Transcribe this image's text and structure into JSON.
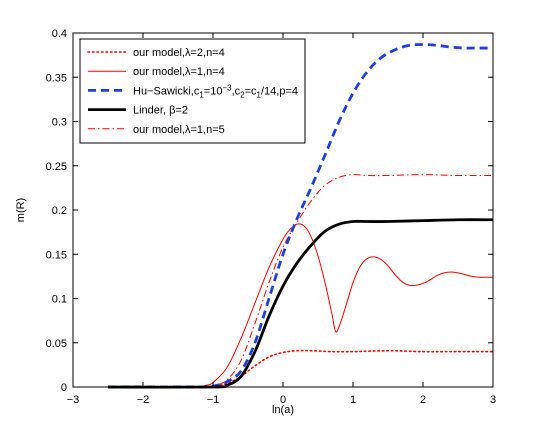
{
  "chart_data": {
    "type": "line",
    "xlabel": "ln(a)",
    "ylabel": "m(R)",
    "xlim": [
      -3,
      3
    ],
    "ylim": [
      0,
      0.4
    ],
    "xticks": [
      -3,
      -2,
      -1,
      0,
      1,
      2,
      3
    ],
    "yticks": [
      0,
      0.05,
      0.1,
      0.15,
      0.2,
      0.25,
      0.3,
      0.35,
      0.4
    ],
    "xtick_labels": [
      "−3",
      "−2",
      "−1",
      "0",
      "1",
      "2",
      "3"
    ],
    "ytick_labels": [
      "0",
      "0.05",
      "0.1",
      "0.15",
      "0.2",
      "0.25",
      "0.3",
      "0.35",
      "0.4"
    ],
    "grid": false,
    "legend_position": "top-left",
    "series": [
      {
        "key": "lambda2n4",
        "name": "our model,λ=2,n=4",
        "color": "#ff0000",
        "style": "dotted",
        "x": [
          -2.5,
          -1.2,
          -1.0,
          -0.8,
          -0.6,
          -0.4,
          -0.2,
          0.0,
          0.2,
          0.4,
          0.7,
          1.0,
          1.5,
          2.0,
          2.5,
          3.0
        ],
        "y": [
          0,
          0,
          0.001,
          0.004,
          0.012,
          0.024,
          0.034,
          0.039,
          0.041,
          0.041,
          0.04,
          0.04,
          0.041,
          0.04,
          0.04,
          0.04
        ]
      },
      {
        "key": "lambda1n4",
        "name": "our model,λ=1,n=4",
        "color": "#ff0000",
        "style": "solid",
        "x": [
          -2.5,
          -1.3,
          -1.1,
          -1.0,
          -0.8,
          -0.6,
          -0.4,
          -0.2,
          0.0,
          0.1,
          0.2,
          0.3,
          0.4,
          0.5,
          0.6,
          0.7,
          0.75,
          0.8,
          0.9,
          1.0,
          1.1,
          1.2,
          1.3,
          1.4,
          1.5,
          1.6,
          1.7,
          1.8,
          1.9,
          2.0,
          2.1,
          2.2,
          2.3,
          2.4,
          2.5,
          2.6,
          2.7,
          2.8,
          2.9,
          3.0
        ],
        "y": [
          0,
          0,
          0.002,
          0.005,
          0.022,
          0.055,
          0.095,
          0.135,
          0.167,
          0.178,
          0.184,
          0.182,
          0.17,
          0.148,
          0.118,
          0.082,
          0.063,
          0.068,
          0.092,
          0.118,
          0.136,
          0.145,
          0.147,
          0.144,
          0.137,
          0.127,
          0.119,
          0.115,
          0.115,
          0.117,
          0.121,
          0.126,
          0.129,
          0.13,
          0.129,
          0.127,
          0.125,
          0.124,
          0.124,
          0.124
        ]
      },
      {
        "key": "husawicki",
        "name": "Hu−Sawicki,c",
        "name_sub1": "1",
        "name_mid1": "=10",
        "name_sup": "−3",
        "name_mid2": ",c",
        "name_sub2": "2",
        "name_mid3": "=c",
        "name_sub3": "1",
        "name_end": "/14,p=4",
        "color": "#1f3de0",
        "style": "dashed",
        "x": [
          -2.5,
          -1.2,
          -1.0,
          -0.8,
          -0.6,
          -0.4,
          -0.2,
          0.0,
          0.2,
          0.4,
          0.6,
          0.8,
          1.0,
          1.2,
          1.4,
          1.6,
          1.8,
          2.0,
          2.2,
          2.4,
          2.6,
          2.8,
          3.0
        ],
        "y": [
          0,
          0,
          0.001,
          0.006,
          0.018,
          0.05,
          0.1,
          0.15,
          0.19,
          0.225,
          0.262,
          0.3,
          0.332,
          0.356,
          0.372,
          0.381,
          0.386,
          0.387,
          0.386,
          0.384,
          0.383,
          0.383,
          0.383
        ]
      },
      {
        "key": "linder",
        "name": "Linder, β=2",
        "color": "#000000",
        "style": "solid-thick",
        "x": [
          -2.5,
          -1.0,
          -0.8,
          -0.6,
          -0.4,
          -0.2,
          0.0,
          0.2,
          0.4,
          0.6,
          0.8,
          1.0,
          1.2,
          1.5,
          2.0,
          2.5,
          3.0
        ],
        "y": [
          0,
          0,
          0.002,
          0.012,
          0.04,
          0.08,
          0.114,
          0.14,
          0.16,
          0.176,
          0.184,
          0.187,
          0.187,
          0.187,
          0.188,
          0.189,
          0.189
        ]
      },
      {
        "key": "lambda1n5",
        "name": "our model,λ=1,n=5",
        "color": "#ff0000",
        "style": "dashdot",
        "x": [
          -2.5,
          -1.1,
          -1.0,
          -0.8,
          -0.6,
          -0.4,
          -0.2,
          0.0,
          0.2,
          0.4,
          0.6,
          0.8,
          1.0,
          1.2,
          1.5,
          2.0,
          2.5,
          3.0
        ],
        "y": [
          0,
          0,
          0.001,
          0.008,
          0.03,
          0.072,
          0.118,
          0.158,
          0.186,
          0.21,
          0.228,
          0.237,
          0.24,
          0.239,
          0.239,
          0.24,
          0.239,
          0.239
        ]
      }
    ]
  }
}
